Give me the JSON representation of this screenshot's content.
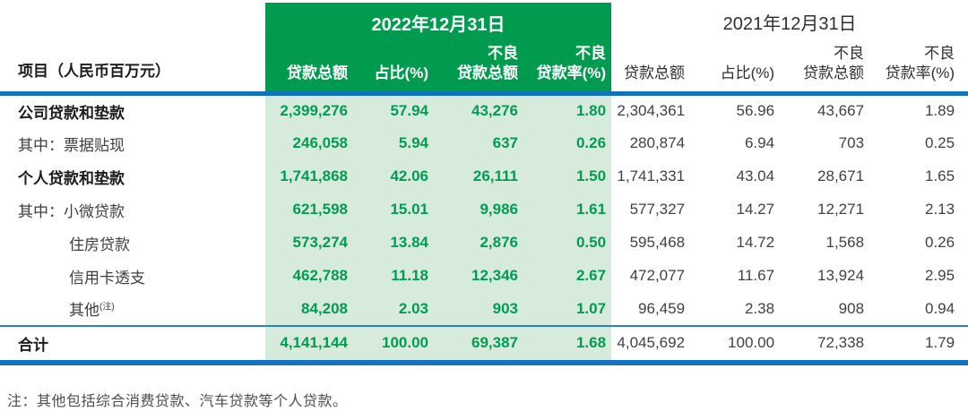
{
  "header": {
    "item": "项目（人民币百万元）",
    "group2022": "2022年12月31日",
    "group2021": "2021年12月31日",
    "col_loan": "贷款总额",
    "col_share": "占比(%)",
    "col_npl_l1": "不良",
    "col_npl_l2": "贷款总额",
    "col_rate_l1": "不良",
    "col_rate_l2": "贷款率(%)"
  },
  "rows": [
    {
      "label": "公司贷款和垫款",
      "v": [
        "2,399,276",
        "57.94",
        "43,276",
        "1.80",
        "2,304,361",
        "56.96",
        "43,667",
        "1.89"
      ]
    },
    {
      "label": "其中：票据贴现",
      "v": [
        "246,058",
        "5.94",
        "637",
        "0.26",
        "280,874",
        "6.94",
        "703",
        "0.25"
      ]
    },
    {
      "label": "个人贷款和垫款",
      "v": [
        "1,741,868",
        "42.06",
        "26,111",
        "1.50",
        "1,741,331",
        "43.04",
        "28,671",
        "1.65"
      ]
    },
    {
      "label": "其中：小微贷款",
      "v": [
        "621,598",
        "15.01",
        "9,986",
        "1.61",
        "577,327",
        "14.27",
        "12,271",
        "2.13"
      ]
    },
    {
      "label": "住房贷款",
      "v": [
        "573,274",
        "13.84",
        "2,876",
        "0.50",
        "595,468",
        "14.72",
        "1,568",
        "0.26"
      ]
    },
    {
      "label": "信用卡透支",
      "v": [
        "462,788",
        "11.18",
        "12,346",
        "2.67",
        "472,077",
        "11.67",
        "13,924",
        "2.95"
      ]
    },
    {
      "label": "其他",
      "sup": "(注)",
      "v": [
        "84,208",
        "2.03",
        "903",
        "1.07",
        "96,459",
        "2.38",
        "908",
        "0.94"
      ]
    }
  ],
  "total": {
    "label": "合计",
    "v": [
      "4,141,144",
      "100.00",
      "69,387",
      "1.68",
      "4,045,692",
      "100.00",
      "72,338",
      "1.79"
    ]
  },
  "footnote": "注：其他包括综合消费贷款、汽车贷款等个人贷款。",
  "colors": {
    "header_green": "#009B4F",
    "body_light_green": "#D7EBDC",
    "value_green": "#009C52",
    "rule_blue": "#1272BD"
  }
}
